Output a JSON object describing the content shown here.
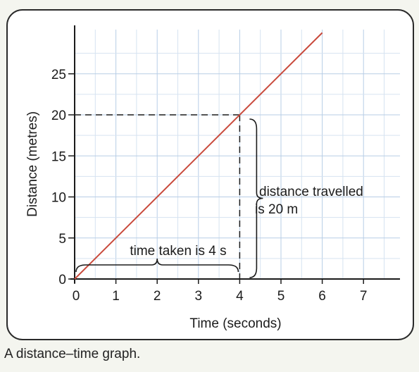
{
  "chart_data": {
    "type": "line",
    "xlabel": "Time (seconds)",
    "ylabel": "Distance (metres)",
    "xlim": [
      0,
      7.8
    ],
    "ylim": [
      0,
      29.5
    ],
    "x_ticks": [
      "0",
      "1",
      "2",
      "3",
      "4",
      "5",
      "6",
      "7"
    ],
    "y_ticks": [
      "0",
      "5",
      "10",
      "15",
      "20",
      "25"
    ],
    "grid": true,
    "series": [
      {
        "x": [
          0,
          6
        ],
        "y": [
          0,
          30
        ],
        "color": "#c94a3c"
      }
    ],
    "highlight_point": {
      "x": 4,
      "y": 20
    },
    "annotations": {
      "time_label": "time taken is 4 s",
      "distance_line1": "distance travelled",
      "distance_line2": "is 20 m"
    }
  },
  "caption": "A distance–time graph."
}
